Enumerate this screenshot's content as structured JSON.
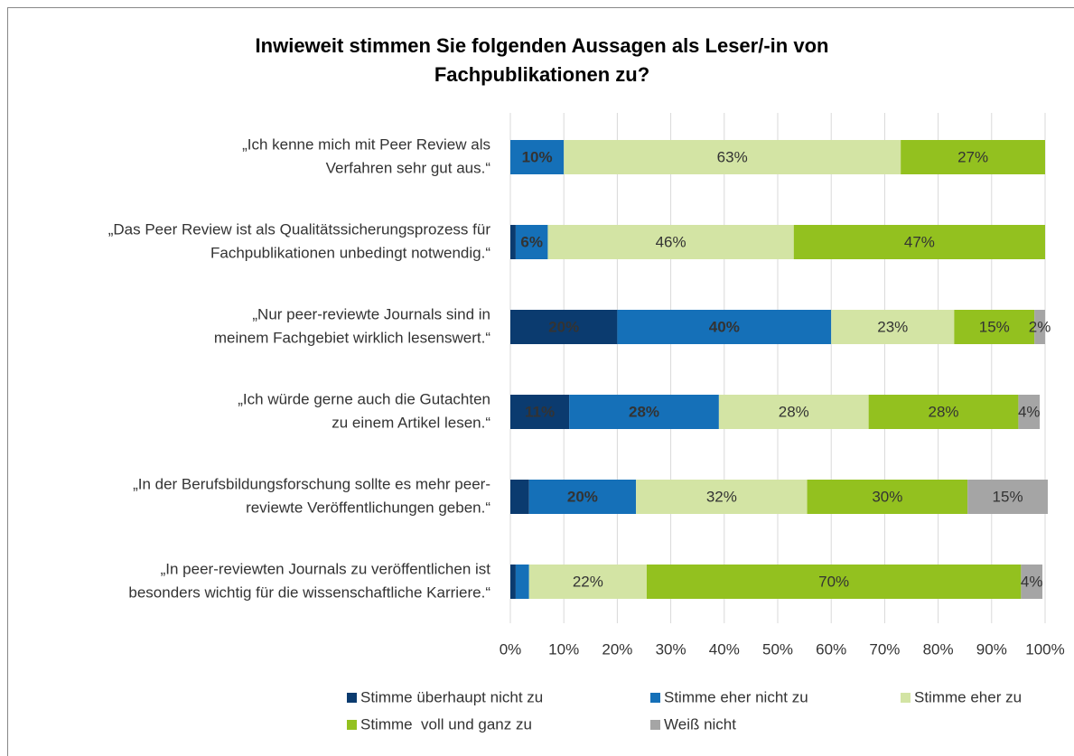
{
  "chart_data": {
    "type": "stacked_barh_percent",
    "title": [
      "Inwieweit stimmen Sie folgenden Aussagen als Leser/-in von",
      "Fachpublikationen zu?"
    ],
    "categories": [
      [
        "„Ich kenne mich mit Peer Review als",
        "Verfahren sehr gut aus.“"
      ],
      [
        "„Das Peer Review ist als Qualitätssicherungsprozess für",
        "Fachpublikationen unbedingt notwendig.“"
      ],
      [
        "„Nur peer-reviewte Journals sind in",
        "meinem Fachgebiet wirklich lesenswert.“"
      ],
      [
        "„Ich würde gerne auch die Gutachten",
        "zu einem Artikel lesen.“"
      ],
      [
        "„In der Berufsbildungsforschung sollte es mehr peer-",
        "reviewte Veröffentlichungen geben.“"
      ],
      [
        "„In peer-reviewten Journals zu veröffentlichen ist",
        "besonders wichtig für die wissenschaftliche Karriere.“"
      ]
    ],
    "series": [
      {
        "name": "Stimme überhaupt nicht zu",
        "color": "#0b3b6f",
        "label_color": "#ffffff",
        "values": [
          0,
          1,
          20,
          11,
          3.5,
          1
        ],
        "value_labels": [
          null,
          null,
          "20%",
          "11%",
          null,
          null
        ]
      },
      {
        "name": "Stimme eher nicht zu",
        "color": "#1570b8",
        "label_color": "#ffffff",
        "values": [
          10,
          6,
          40,
          28,
          20,
          2.5
        ],
        "value_labels": [
          "10%",
          "6%",
          "40%",
          "28%",
          "20%",
          null
        ]
      },
      {
        "name": "Stimme eher zu",
        "color": "#d3e4a4",
        "label_color": "#333333",
        "values": [
          63,
          46,
          23,
          28,
          32,
          22
        ],
        "value_labels": [
          "63%",
          "46%",
          "23%",
          "28%",
          "32%",
          "22%"
        ]
      },
      {
        "name": "Stimme  voll und ganz zu",
        "color": "#93c11f",
        "label_color": "#333333",
        "values": [
          27,
          47,
          15,
          28,
          30,
          70
        ],
        "value_labels": [
          "27%",
          "47%",
          "15%",
          "28%",
          "30%",
          "70%"
        ]
      },
      {
        "name": "Weiß nicht",
        "color": "#a5a5a5",
        "label_color": "#333333",
        "values": [
          0,
          0,
          2,
          4,
          15,
          4
        ],
        "value_labels": [
          null,
          null,
          "2%",
          "4%",
          "15%",
          "4%"
        ]
      }
    ],
    "xlim": [
      0,
      100
    ],
    "xticks": [
      {
        "value": 0,
        "label": "0%"
      },
      {
        "value": 10,
        "label": "10%"
      },
      {
        "value": 20,
        "label": "20%"
      },
      {
        "value": 30,
        "label": "30%"
      },
      {
        "value": 40,
        "label": "40%"
      },
      {
        "value": 50,
        "label": "50%"
      },
      {
        "value": 60,
        "label": "60%"
      },
      {
        "value": 70,
        "label": "70%"
      },
      {
        "value": 80,
        "label": "80%"
      },
      {
        "value": 90,
        "label": "90%"
      },
      {
        "value": 100,
        "label": "100%"
      }
    ],
    "grid": true,
    "legend": "bottom"
  }
}
